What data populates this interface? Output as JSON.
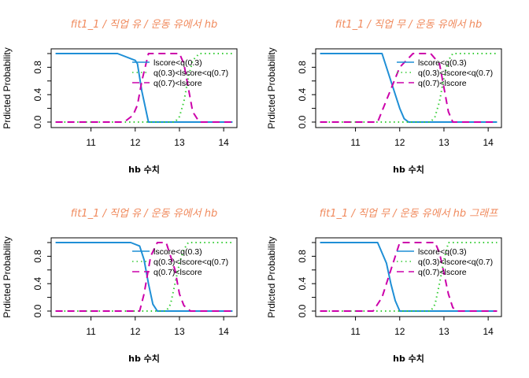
{
  "chart_data": [
    {
      "type": "line",
      "title": "fit1_1 / 직업 유 / 운동 유에서 hb",
      "xlabel": "hb 수치",
      "ylabel": "Prdicted  Probability",
      "xlim": [
        10.1,
        14.3
      ],
      "ylim": [
        0,
        1
      ],
      "xticks": [
        11,
        12,
        13,
        14
      ],
      "yticks": [
        0.0,
        0.4,
        0.8
      ],
      "legend_position": "top-right",
      "series": [
        {
          "name": "lscore<q(0.3)",
          "color": "#1f8fd6",
          "dash": "solid",
          "x": [
            10.2,
            11.0,
            11.6,
            12.0,
            12.05,
            12.15,
            12.3,
            14.2
          ],
          "y": [
            1.0,
            1.0,
            1.0,
            0.9,
            0.85,
            0.45,
            0.0,
            0.0
          ]
        },
        {
          "name": "q(0.3)<lscore<q(0.7)",
          "color": "#33cc33",
          "dash": "dotted",
          "x": [
            10.2,
            12.9,
            13.0,
            13.1,
            13.2,
            13.3,
            13.45,
            14.2
          ],
          "y": [
            0.0,
            0.0,
            0.08,
            0.3,
            0.65,
            0.9,
            1.0,
            1.0
          ]
        },
        {
          "name": "q(0.7)<lscore",
          "color": "#cc00aa",
          "dash": "dashed",
          "x": [
            10.2,
            11.75,
            11.95,
            12.05,
            12.15,
            12.3,
            13.0,
            13.1,
            13.2,
            13.3,
            13.45,
            14.2
          ],
          "y": [
            0.0,
            0.0,
            0.1,
            0.25,
            0.6,
            1.0,
            1.0,
            0.85,
            0.5,
            0.15,
            0.0,
            0.0
          ]
        }
      ]
    },
    {
      "type": "line",
      "title": "fit1_1 / 직업 무 / 운동 유에서 hb",
      "xlabel": "hb 수치",
      "ylabel": "Prdicted  Probability",
      "xlim": [
        10.1,
        14.3
      ],
      "ylim": [
        0,
        1
      ],
      "xticks": [
        11,
        12,
        13,
        14
      ],
      "yticks": [
        0.0,
        0.4,
        0.8
      ],
      "legend_position": "top-right",
      "series": [
        {
          "name": "lscore<q(0.3)",
          "color": "#1f8fd6",
          "dash": "solid",
          "x": [
            10.2,
            11.6,
            12.0,
            12.1,
            12.2,
            14.2
          ],
          "y": [
            1.0,
            1.0,
            0.2,
            0.05,
            0.0,
            0.0
          ]
        },
        {
          "name": "q(0.3)<lscore<q(0.7)",
          "color": "#33cc33",
          "dash": "dotted",
          "x": [
            10.2,
            12.7,
            12.8,
            12.9,
            13.0,
            13.1,
            13.2,
            14.2
          ],
          "y": [
            0.0,
            0.0,
            0.08,
            0.3,
            0.65,
            0.9,
            1.0,
            1.0
          ]
        },
        {
          "name": "q(0.7)<lscore",
          "color": "#cc00aa",
          "dash": "dashed",
          "x": [
            10.2,
            11.5,
            12.0,
            12.3,
            12.7,
            12.9,
            13.0,
            13.1,
            13.2,
            14.2
          ],
          "y": [
            0.0,
            0.0,
            0.8,
            1.0,
            1.0,
            0.85,
            0.5,
            0.15,
            0.0,
            0.0
          ]
        }
      ]
    },
    {
      "type": "line",
      "title": "fit1_1 / 직업 유 / 운동 유에서 hb",
      "xlabel": "hb 수치",
      "ylabel": "Prdicted  Probability",
      "xlim": [
        10.1,
        14.3
      ],
      "ylim": [
        0,
        1
      ],
      "xticks": [
        11,
        12,
        13,
        14
      ],
      "yticks": [
        0.0,
        0.4,
        0.8
      ],
      "legend_position": "top-right",
      "series": [
        {
          "name": "lscore<q(0.3)",
          "color": "#1f8fd6",
          "dash": "solid",
          "x": [
            10.2,
            11.9,
            12.1,
            12.2,
            12.3,
            12.4,
            12.5,
            14.2
          ],
          "y": [
            1.0,
            1.0,
            0.95,
            0.75,
            0.4,
            0.1,
            0.0,
            0.0
          ]
        },
        {
          "name": "q(0.3)<lscore<q(0.7)",
          "color": "#33cc33",
          "dash": "dotted",
          "x": [
            10.2,
            12.7,
            12.8,
            12.9,
            13.0,
            13.1,
            13.2,
            14.2
          ],
          "y": [
            0.0,
            0.0,
            0.1,
            0.4,
            0.7,
            0.9,
            1.0,
            1.0
          ]
        },
        {
          "name": "q(0.7)<lscore",
          "color": "#cc00aa",
          "dash": "dashed",
          "x": [
            10.2,
            12.1,
            12.2,
            12.35,
            12.5,
            12.7,
            12.9,
            13.0,
            13.1,
            13.25,
            14.2
          ],
          "y": [
            0.0,
            0.0,
            0.25,
            0.8,
            1.0,
            1.0,
            0.6,
            0.25,
            0.08,
            0.0,
            0.0
          ]
        }
      ]
    },
    {
      "type": "line",
      "title": "fit1_1 / 직업 무 / 운동 유에서 hb 그래프",
      "xlabel": "hb 수치",
      "ylabel": "Prdicted  Probability",
      "xlim": [
        10.1,
        14.3
      ],
      "ylim": [
        0,
        1
      ],
      "xticks": [
        11,
        12,
        13,
        14
      ],
      "yticks": [
        0.0,
        0.4,
        0.8
      ],
      "legend_position": "top-right",
      "series": [
        {
          "name": "lscore<q(0.3)",
          "color": "#1f8fd6",
          "dash": "solid",
          "x": [
            10.2,
            11.5,
            11.7,
            11.8,
            11.9,
            12.0,
            14.2
          ],
          "y": [
            1.0,
            1.0,
            0.7,
            0.4,
            0.15,
            0.0,
            0.0
          ]
        },
        {
          "name": "q(0.3)<lscore<q(0.7)",
          "color": "#33cc33",
          "dash": "dotted",
          "x": [
            10.2,
            12.7,
            12.8,
            12.9,
            13.0,
            13.1,
            14.2
          ],
          "y": [
            0.0,
            0.0,
            0.1,
            0.4,
            0.75,
            1.0,
            1.0
          ]
        },
        {
          "name": "q(0.7)<lscore",
          "color": "#cc00aa",
          "dash": "dashed",
          "x": [
            10.2,
            11.4,
            11.6,
            11.8,
            12.0,
            12.8,
            12.9,
            13.0,
            13.1,
            13.2,
            13.3,
            14.2
          ],
          "y": [
            0.0,
            0.0,
            0.2,
            0.6,
            1.0,
            1.0,
            0.85,
            0.55,
            0.25,
            0.05,
            0.0,
            0.0
          ]
        }
      ]
    }
  ]
}
